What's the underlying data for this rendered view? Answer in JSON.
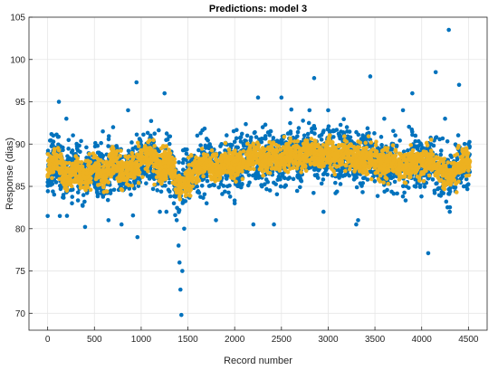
{
  "chart_data": {
    "type": "scatter",
    "title": "Predictions: model 3",
    "xlabel": "Record number",
    "ylabel": "Response (dias)",
    "xlim": [
      -200,
      4700
    ],
    "ylim": [
      68,
      105
    ],
    "xticks": [
      0,
      500,
      1000,
      1500,
      2000,
      2500,
      3000,
      3500,
      4000,
      4500
    ],
    "yticks": [
      70,
      75,
      80,
      85,
      90,
      95,
      100,
      105
    ],
    "grid": true,
    "series": [
      {
        "color": "#0072BD",
        "marker": "filled-circle",
        "values_sample": [
          [
            0,
            81.5
          ],
          [
            25,
            88
          ],
          [
            60,
            91
          ],
          [
            120,
            95
          ],
          [
            130,
            81.5
          ],
          [
            200,
            93
          ],
          [
            260,
            83
          ],
          [
            330,
            86
          ],
          [
            400,
            80.2
          ],
          [
            450,
            88
          ],
          [
            500,
            86
          ],
          [
            590,
            91.5
          ],
          [
            650,
            81
          ],
          [
            700,
            92
          ],
          [
            790,
            80.5
          ],
          [
            860,
            94
          ],
          [
            950,
            97.3
          ],
          [
            960,
            79
          ],
          [
            1000,
            88
          ],
          [
            1100,
            91
          ],
          [
            1200,
            82
          ],
          [
            1250,
            96
          ],
          [
            1270,
            82
          ],
          [
            1300,
            88
          ],
          [
            1350,
            83
          ],
          [
            1380,
            81
          ],
          [
            1400,
            78
          ],
          [
            1410,
            76
          ],
          [
            1420,
            72.8
          ],
          [
            1430,
            69.8
          ],
          [
            1440,
            75
          ],
          [
            1460,
            80
          ],
          [
            1550,
            86
          ],
          [
            1600,
            91
          ],
          [
            1700,
            83
          ],
          [
            1800,
            81
          ],
          [
            1900,
            90
          ],
          [
            2000,
            83
          ],
          [
            2050,
            89
          ],
          [
            2200,
            80.5
          ],
          [
            2250,
            95.5
          ],
          [
            2300,
            92
          ],
          [
            2420,
            80.5
          ],
          [
            2500,
            95.5
          ],
          [
            2600,
            88
          ],
          [
            2700,
            86
          ],
          [
            2800,
            94
          ],
          [
            2850,
            97.8
          ],
          [
            2950,
            82
          ],
          [
            3000,
            94
          ],
          [
            3100,
            87
          ],
          [
            3200,
            92
          ],
          [
            3300,
            80.5
          ],
          [
            3320,
            81
          ],
          [
            3450,
            98
          ],
          [
            3500,
            90
          ],
          [
            3600,
            93
          ],
          [
            3700,
            87
          ],
          [
            3800,
            94
          ],
          [
            3900,
            96
          ],
          [
            4000,
            88
          ],
          [
            4070,
            77.1
          ],
          [
            4150,
            98.5
          ],
          [
            4250,
            93
          ],
          [
            4290,
            103.5
          ],
          [
            4300,
            82
          ],
          [
            4400,
            97
          ],
          [
            4450,
            85
          ],
          [
            4500,
            90
          ]
        ]
      },
      {
        "color": "#EDB120",
        "marker": "filled-circle",
        "values_sample": [
          [
            0,
            87
          ],
          [
            100,
            88
          ],
          [
            200,
            86
          ],
          [
            300,
            87
          ],
          [
            400,
            86
          ],
          [
            500,
            87.5
          ],
          [
            600,
            86
          ],
          [
            700,
            88
          ],
          [
            800,
            86.5
          ],
          [
            900,
            87
          ],
          [
            1000,
            88
          ],
          [
            1100,
            89
          ],
          [
            1200,
            87
          ],
          [
            1300,
            88
          ],
          [
            1400,
            85
          ],
          [
            1500,
            86
          ],
          [
            1600,
            87
          ],
          [
            1700,
            88
          ],
          [
            1800,
            87
          ],
          [
            1900,
            88
          ],
          [
            2000,
            87.5
          ],
          [
            2100,
            88
          ],
          [
            2200,
            89
          ],
          [
            2300,
            88
          ],
          [
            2400,
            88.5
          ],
          [
            2500,
            88
          ],
          [
            2600,
            89
          ],
          [
            2700,
            88
          ],
          [
            2800,
            89.5
          ],
          [
            2900,
            88
          ],
          [
            3000,
            89
          ],
          [
            3100,
            88.5
          ],
          [
            3200,
            89
          ],
          [
            3300,
            88
          ],
          [
            3400,
            88.5
          ],
          [
            3500,
            88
          ],
          [
            3600,
            87.5
          ],
          [
            3700,
            88
          ],
          [
            3800,
            87
          ],
          [
            3900,
            88
          ],
          [
            4000,
            87.5
          ],
          [
            4100,
            88
          ],
          [
            4200,
            87
          ],
          [
            4300,
            86
          ],
          [
            4400,
            87.5
          ],
          [
            4500,
            88
          ]
        ]
      }
    ]
  }
}
